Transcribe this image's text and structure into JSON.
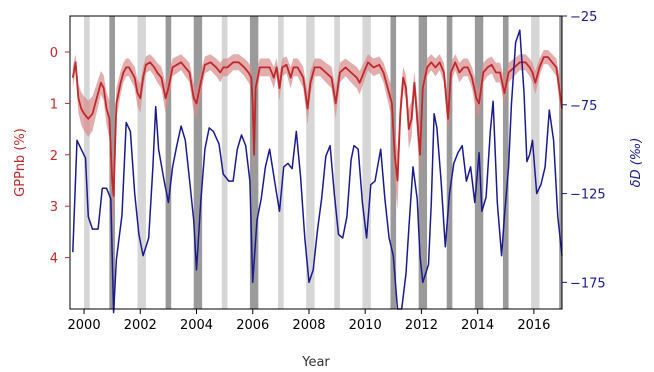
{
  "chart_data": {
    "type": "line",
    "xlabel": "Year",
    "ylabel_left": "GPPnb (%)",
    "ylabel_right": "δD (‰)",
    "xlim": [
      1999.5,
      2017.0
    ],
    "ylim_left": [
      5.0,
      -0.7
    ],
    "ylim_right": [
      -190,
      -25
    ],
    "left_axis_inverted": true,
    "grid": false,
    "colors": {
      "gpp": "#c0282b",
      "gpp_band": "#d98a8a",
      "dd": "#1a1a8c",
      "shade_light": "#d6d6d6",
      "shade_dark": "#9a9a9a"
    },
    "x_ticks": [
      {
        "value": 2000,
        "label": "2000"
      },
      {
        "value": 2002,
        "label": "2002"
      },
      {
        "value": 2004,
        "label": "2004"
      },
      {
        "value": 2006,
        "label": "2006"
      },
      {
        "value": 2008,
        "label": "2008"
      },
      {
        "value": 2010,
        "label": "2010"
      },
      {
        "value": 2012,
        "label": "2012"
      },
      {
        "value": 2014,
        "label": "2014"
      },
      {
        "value": 2016,
        "label": "2016"
      }
    ],
    "left_ticks": [
      {
        "value": 0,
        "label": "0"
      },
      {
        "value": 1,
        "label": "1"
      },
      {
        "value": 2,
        "label": "2"
      },
      {
        "value": 3,
        "label": "3"
      },
      {
        "value": 4,
        "label": "4"
      }
    ],
    "right_ticks": [
      {
        "value": -25,
        "label": "−25"
      },
      {
        "value": -75,
        "label": "−75"
      },
      {
        "value": -125,
        "label": "−125"
      },
      {
        "value": -175,
        "label": "−175"
      }
    ],
    "shaded_periods": [
      {
        "start": 2000.0,
        "end": 2000.2,
        "tone": "light"
      },
      {
        "start": 2000.9,
        "end": 2001.1,
        "tone": "dark"
      },
      {
        "start": 2001.9,
        "end": 2002.2,
        "tone": "light"
      },
      {
        "start": 2002.9,
        "end": 2003.1,
        "tone": "dark"
      },
      {
        "start": 2003.9,
        "end": 2004.2,
        "tone": "dark"
      },
      {
        "start": 2004.9,
        "end": 2005.1,
        "tone": "light"
      },
      {
        "start": 2005.9,
        "end": 2006.2,
        "tone": "dark"
      },
      {
        "start": 2006.9,
        "end": 2007.1,
        "tone": "light"
      },
      {
        "start": 2007.9,
        "end": 2008.2,
        "tone": "light"
      },
      {
        "start": 2008.9,
        "end": 2009.1,
        "tone": "light"
      },
      {
        "start": 2009.9,
        "end": 2010.2,
        "tone": "light"
      },
      {
        "start": 2010.9,
        "end": 2011.1,
        "tone": "dark"
      },
      {
        "start": 2011.9,
        "end": 2012.2,
        "tone": "dark"
      },
      {
        "start": 2012.9,
        "end": 2013.1,
        "tone": "dark"
      },
      {
        "start": 2013.9,
        "end": 2014.2,
        "tone": "dark"
      },
      {
        "start": 2014.9,
        "end": 2015.1,
        "tone": "dark"
      },
      {
        "start": 2015.9,
        "end": 2016.2,
        "tone": "light"
      },
      {
        "start": 2016.9,
        "end": 2017.0,
        "tone": "dark"
      }
    ],
    "series": [
      {
        "axis": "left",
        "points": [
          [
            1999.6,
            0.5
          ],
          [
            1999.7,
            0.2
          ],
          [
            1999.8,
            0.9
          ],
          [
            1999.9,
            1.1
          ],
          [
            2000.0,
            1.2
          ],
          [
            2000.15,
            1.3
          ],
          [
            2000.3,
            1.2
          ],
          [
            2000.45,
            0.9
          ],
          [
            2000.6,
            0.6
          ],
          [
            2000.7,
            0.7
          ],
          [
            2000.8,
            1.1
          ],
          [
            2000.9,
            1.3
          ],
          [
            2001.0,
            2.5
          ],
          [
            2001.05,
            2.8
          ],
          [
            2001.15,
            1.0
          ],
          [
            2001.3,
            0.6
          ],
          [
            2001.4,
            0.4
          ],
          [
            2001.5,
            0.3
          ],
          [
            2001.6,
            0.3
          ],
          [
            2001.7,
            0.4
          ],
          [
            2001.8,
            0.5
          ],
          [
            2001.9,
            0.8
          ],
          [
            2002.0,
            0.9
          ],
          [
            2002.1,
            0.5
          ],
          [
            2002.2,
            0.25
          ],
          [
            2002.35,
            0.2
          ],
          [
            2002.5,
            0.3
          ],
          [
            2002.6,
            0.4
          ],
          [
            2002.75,
            0.5
          ],
          [
            2002.9,
            0.9
          ],
          [
            2003.0,
            0.7
          ],
          [
            2003.15,
            0.3
          ],
          [
            2003.3,
            0.25
          ],
          [
            2003.45,
            0.2
          ],
          [
            2003.6,
            0.3
          ],
          [
            2003.75,
            0.4
          ],
          [
            2003.9,
            0.9
          ],
          [
            2004.0,
            1.0
          ],
          [
            2004.15,
            0.6
          ],
          [
            2004.3,
            0.25
          ],
          [
            2004.5,
            0.2
          ],
          [
            2004.7,
            0.3
          ],
          [
            2004.85,
            0.4
          ],
          [
            2004.95,
            0.3
          ],
          [
            2005.1,
            0.3
          ],
          [
            2005.3,
            0.2
          ],
          [
            2005.5,
            0.2
          ],
          [
            2005.7,
            0.3
          ],
          [
            2005.85,
            0.4
          ],
          [
            2005.95,
            0.5
          ],
          [
            2006.0,
            1.0
          ],
          [
            2006.05,
            2.0
          ],
          [
            2006.1,
            0.7
          ],
          [
            2006.25,
            0.3
          ],
          [
            2006.45,
            0.3
          ],
          [
            2006.6,
            0.3
          ],
          [
            2006.75,
            0.5
          ],
          [
            2006.85,
            0.3
          ],
          [
            2006.95,
            0.7
          ],
          [
            2007.05,
            0.3
          ],
          [
            2007.2,
            0.25
          ],
          [
            2007.35,
            0.5
          ],
          [
            2007.45,
            0.3
          ],
          [
            2007.6,
            0.3
          ],
          [
            2007.8,
            0.5
          ],
          [
            2007.95,
            1.1
          ],
          [
            2008.05,
            0.6
          ],
          [
            2008.2,
            0.3
          ],
          [
            2008.4,
            0.3
          ],
          [
            2008.6,
            0.4
          ],
          [
            2008.8,
            0.5
          ],
          [
            2008.95,
            1.0
          ],
          [
            2009.1,
            0.4
          ],
          [
            2009.3,
            0.3
          ],
          [
            2009.5,
            0.4
          ],
          [
            2009.7,
            0.5
          ],
          [
            2009.8,
            0.6
          ],
          [
            2009.95,
            0.4
          ],
          [
            2010.1,
            0.2
          ],
          [
            2010.3,
            0.3
          ],
          [
            2010.5,
            0.25
          ],
          [
            2010.65,
            0.4
          ],
          [
            2010.8,
            0.7
          ],
          [
            2010.95,
            1.0
          ],
          [
            2011.05,
            2.0
          ],
          [
            2011.15,
            2.5
          ],
          [
            2011.25,
            1.2
          ],
          [
            2011.35,
            0.5
          ],
          [
            2011.45,
            0.7
          ],
          [
            2011.55,
            1.5
          ],
          [
            2011.65,
            1.3
          ],
          [
            2011.75,
            0.6
          ],
          [
            2011.85,
            1.3
          ],
          [
            2011.95,
            2.0
          ],
          [
            2012.05,
            0.7
          ],
          [
            2012.2,
            0.3
          ],
          [
            2012.35,
            0.2
          ],
          [
            2012.5,
            0.3
          ],
          [
            2012.65,
            0.2
          ],
          [
            2012.8,
            0.4
          ],
          [
            2012.95,
            1.3
          ],
          [
            2013.05,
            0.4
          ],
          [
            2013.2,
            0.2
          ],
          [
            2013.35,
            0.4
          ],
          [
            2013.5,
            0.3
          ],
          [
            2013.65,
            0.3
          ],
          [
            2013.8,
            0.5
          ],
          [
            2013.95,
            0.9
          ],
          [
            2014.05,
            1.0
          ],
          [
            2014.2,
            0.4
          ],
          [
            2014.35,
            0.3
          ],
          [
            2014.5,
            0.25
          ],
          [
            2014.65,
            0.4
          ],
          [
            2014.8,
            0.4
          ],
          [
            2014.95,
            0.8
          ],
          [
            2015.1,
            0.4
          ],
          [
            2015.3,
            0.3
          ],
          [
            2015.5,
            0.2
          ],
          [
            2015.7,
            0.2
          ],
          [
            2015.85,
            0.3
          ],
          [
            2015.95,
            0.4
          ],
          [
            2016.05,
            0.6
          ],
          [
            2016.2,
            0.3
          ],
          [
            2016.35,
            0.1
          ],
          [
            2016.5,
            0.1
          ],
          [
            2016.65,
            0.2
          ],
          [
            2016.8,
            0.3
          ],
          [
            2016.95,
            0.9
          ],
          [
            2017.0,
            1.1
          ]
        ]
      },
      {
        "axis": "right",
        "points": [
          [
            1999.6,
            -158
          ],
          [
            1999.75,
            -95
          ],
          [
            1999.9,
            -100
          ],
          [
            2000.05,
            -105
          ],
          [
            2000.15,
            -138
          ],
          [
            2000.3,
            -145
          ],
          [
            2000.5,
            -145
          ],
          [
            2000.65,
            -122
          ],
          [
            2000.8,
            -122
          ],
          [
            2000.95,
            -128
          ],
          [
            2001.05,
            -192
          ],
          [
            2001.15,
            -162
          ],
          [
            2001.35,
            -137
          ],
          [
            2001.5,
            -85
          ],
          [
            2001.65,
            -90
          ],
          [
            2001.8,
            -125
          ],
          [
            2001.95,
            -148
          ],
          [
            2002.1,
            -160
          ],
          [
            2002.3,
            -150
          ],
          [
            2002.45,
            -110
          ],
          [
            2002.55,
            -76
          ],
          [
            2002.65,
            -100
          ],
          [
            2002.85,
            -118
          ],
          [
            2003.0,
            -130
          ],
          [
            2003.15,
            -110
          ],
          [
            2003.3,
            -98
          ],
          [
            2003.45,
            -87
          ],
          [
            2003.6,
            -95
          ],
          [
            2003.75,
            -117
          ],
          [
            2003.9,
            -140
          ],
          [
            2004.0,
            -168
          ],
          [
            2004.15,
            -130
          ],
          [
            2004.3,
            -100
          ],
          [
            2004.45,
            -88
          ],
          [
            2004.6,
            -90
          ],
          [
            2004.8,
            -97
          ],
          [
            2004.95,
            -114
          ],
          [
            2005.15,
            -118
          ],
          [
            2005.3,
            -118
          ],
          [
            2005.45,
            -100
          ],
          [
            2005.6,
            -92
          ],
          [
            2005.75,
            -98
          ],
          [
            2005.9,
            -118
          ],
          [
            2006.0,
            -175
          ],
          [
            2006.15,
            -140
          ],
          [
            2006.3,
            -128
          ],
          [
            2006.45,
            -110
          ],
          [
            2006.6,
            -100
          ],
          [
            2006.8,
            -120
          ],
          [
            2006.95,
            -135
          ],
          [
            2007.1,
            -110
          ],
          [
            2007.25,
            -108
          ],
          [
            2007.4,
            -111
          ],
          [
            2007.55,
            -90
          ],
          [
            2007.7,
            -115
          ],
          [
            2007.85,
            -150
          ],
          [
            2008.0,
            -175
          ],
          [
            2008.15,
            -168
          ],
          [
            2008.3,
            -146
          ],
          [
            2008.45,
            -128
          ],
          [
            2008.6,
            -104
          ],
          [
            2008.75,
            -98
          ],
          [
            2008.9,
            -125
          ],
          [
            2009.05,
            -148
          ],
          [
            2009.2,
            -150
          ],
          [
            2009.35,
            -138
          ],
          [
            2009.5,
            -106
          ],
          [
            2009.6,
            -98
          ],
          [
            2009.75,
            -100
          ],
          [
            2009.9,
            -130
          ],
          [
            2010.05,
            -150
          ],
          [
            2010.2,
            -120
          ],
          [
            2010.35,
            -118
          ],
          [
            2010.55,
            -100
          ],
          [
            2010.7,
            -128
          ],
          [
            2010.85,
            -150
          ],
          [
            2011.0,
            -160
          ],
          [
            2011.15,
            -190
          ],
          [
            2011.3,
            -190
          ],
          [
            2011.45,
            -170
          ],
          [
            2011.55,
            -145
          ],
          [
            2011.7,
            -110
          ],
          [
            2011.85,
            -128
          ],
          [
            2011.95,
            -160
          ],
          [
            2012.05,
            -175
          ],
          [
            2012.25,
            -165
          ],
          [
            2012.35,
            -130
          ],
          [
            2012.45,
            -80
          ],
          [
            2012.55,
            -88
          ],
          [
            2012.7,
            -118
          ],
          [
            2012.85,
            -155
          ],
          [
            2013.0,
            -125
          ],
          [
            2013.15,
            -108
          ],
          [
            2013.3,
            -102
          ],
          [
            2013.45,
            -98
          ],
          [
            2013.6,
            -118
          ],
          [
            2013.75,
            -110
          ],
          [
            2013.9,
            -130
          ],
          [
            2014.05,
            -102
          ],
          [
            2014.15,
            -135
          ],
          [
            2014.3,
            -127
          ],
          [
            2014.45,
            -90
          ],
          [
            2014.55,
            -73
          ],
          [
            2014.7,
            -130
          ],
          [
            2014.85,
            -160
          ],
          [
            2014.95,
            -138
          ],
          [
            2015.1,
            -110
          ],
          [
            2015.2,
            -75
          ],
          [
            2015.35,
            -40
          ],
          [
            2015.5,
            -33
          ],
          [
            2015.65,
            -68
          ],
          [
            2015.75,
            -107
          ],
          [
            2015.85,
            -103
          ],
          [
            2015.95,
            -95
          ],
          [
            2016.1,
            -125
          ],
          [
            2016.25,
            -120
          ],
          [
            2016.4,
            -110
          ],
          [
            2016.55,
            -78
          ],
          [
            2016.7,
            -95
          ],
          [
            2016.85,
            -138
          ],
          [
            2017.0,
            -160
          ]
        ]
      }
    ]
  }
}
